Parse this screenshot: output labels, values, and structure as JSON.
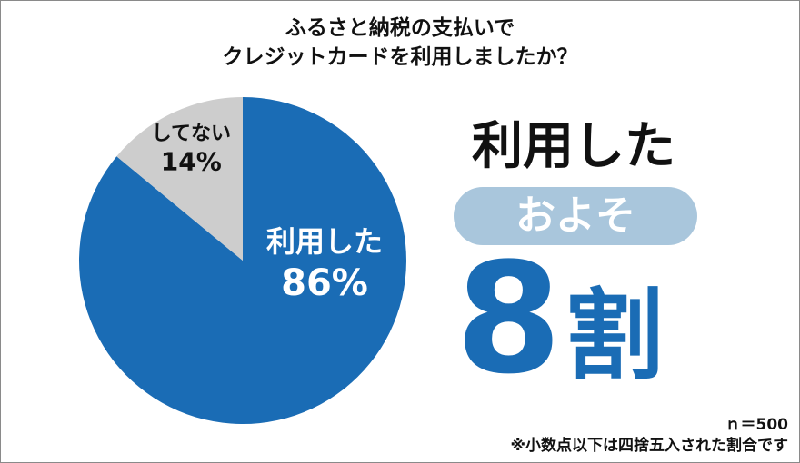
{
  "title": {
    "line1": "ふるさと納税の支払いで",
    "line2": "クレジットカードを利用しましたか？"
  },
  "chart_data": {
    "type": "pie",
    "slices": [
      {
        "label": "利用した",
        "value": 86,
        "value_label": "86%",
        "color": "#1a6cb5",
        "text_color": "#ffffff"
      },
      {
        "label": "してない",
        "value": 14,
        "value_label": "14%",
        "color": "#cdcdcd",
        "text_color": "#111111"
      }
    ]
  },
  "headline": {
    "line1": "利用した",
    "pill": "およそ",
    "big_number": "8",
    "big_unit": "割"
  },
  "footer": {
    "sample_size": "ｎ＝500",
    "note": "※小数点以下は四捨五入された割合です"
  },
  "colors": {
    "accent_blue": "#1a6cb5",
    "pill_blue": "#a9c6dc",
    "gray": "#cdcdcd"
  }
}
